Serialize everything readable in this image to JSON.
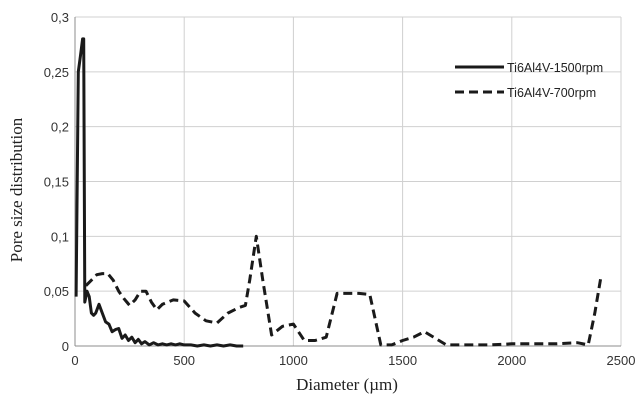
{
  "chart_data": {
    "type": "line",
    "xlabel": "Diameter (µm)",
    "ylabel": "Pore size distribution",
    "xlim": [
      0,
      2500
    ],
    "ylim": [
      0,
      0.3
    ],
    "x_ticks": [
      0,
      500,
      1000,
      1500,
      2000,
      2500
    ],
    "y_ticks": [
      0,
      0.05,
      0.1,
      0.15,
      0.2,
      0.25,
      0.3
    ],
    "x_tick_labels": [
      "0",
      "500",
      "1000",
      "1500",
      "2000",
      "2500"
    ],
    "y_tick_labels": [
      "0",
      "0,05",
      "0,1",
      "0,15",
      "0,2",
      "0,25",
      "0,3"
    ],
    "grid": true,
    "legend_position": "top-right",
    "series": [
      {
        "name": "Ti6Al4V-1500rpm",
        "style": "solid",
        "color": "#1a1a1a",
        "x": [
          5,
          15,
          25,
          35,
          40,
          45,
          55,
          65,
          75,
          85,
          95,
          110,
          125,
          140,
          155,
          170,
          185,
          200,
          215,
          230,
          245,
          260,
          275,
          290,
          305,
          320,
          340,
          360,
          380,
          400,
          420,
          440,
          460,
          480,
          500,
          530,
          560,
          590,
          620,
          650,
          680,
          710,
          740,
          770
        ],
        "y": [
          0.045,
          0.25,
          0.265,
          0.28,
          0.28,
          0.04,
          0.05,
          0.045,
          0.03,
          0.028,
          0.03,
          0.038,
          0.03,
          0.022,
          0.02,
          0.013,
          0.015,
          0.016,
          0.007,
          0.01,
          0.005,
          0.008,
          0.003,
          0.006,
          0.002,
          0.004,
          0.001,
          0.003,
          0.001,
          0.002,
          0.001,
          0.002,
          0.001,
          0.002,
          0.001,
          0.001,
          0.0,
          0.001,
          0.0,
          0.001,
          0.0,
          0.001,
          0.0,
          0.0
        ]
      },
      {
        "name": "Ti6Al4V-700rpm",
        "style": "dashed",
        "color": "#1a1a1a",
        "x": [
          50,
          75,
          100,
          125,
          150,
          175,
          200,
          225,
          250,
          275,
          300,
          325,
          350,
          375,
          400,
          450,
          500,
          550,
          600,
          650,
          700,
          750,
          780,
          800,
          830,
          860,
          900,
          950,
          1000,
          1050,
          1100,
          1150,
          1200,
          1250,
          1300,
          1350,
          1400,
          1450,
          1500,
          1550,
          1600,
          1650,
          1700,
          1750,
          1800,
          1900,
          2000,
          2100,
          2200,
          2300,
          2350,
          2380,
          2410
        ],
        "y": [
          0.055,
          0.06,
          0.065,
          0.066,
          0.066,
          0.06,
          0.05,
          0.043,
          0.037,
          0.042,
          0.05,
          0.05,
          0.04,
          0.033,
          0.038,
          0.042,
          0.041,
          0.03,
          0.023,
          0.021,
          0.03,
          0.035,
          0.037,
          0.06,
          0.1,
          0.06,
          0.01,
          0.018,
          0.02,
          0.005,
          0.005,
          0.008,
          0.048,
          0.048,
          0.048,
          0.047,
          0.001,
          0.001,
          0.005,
          0.008,
          0.013,
          0.007,
          0.001,
          0.001,
          0.001,
          0.001,
          0.002,
          0.002,
          0.002,
          0.003,
          0.001,
          0.03,
          0.065
        ]
      }
    ]
  }
}
